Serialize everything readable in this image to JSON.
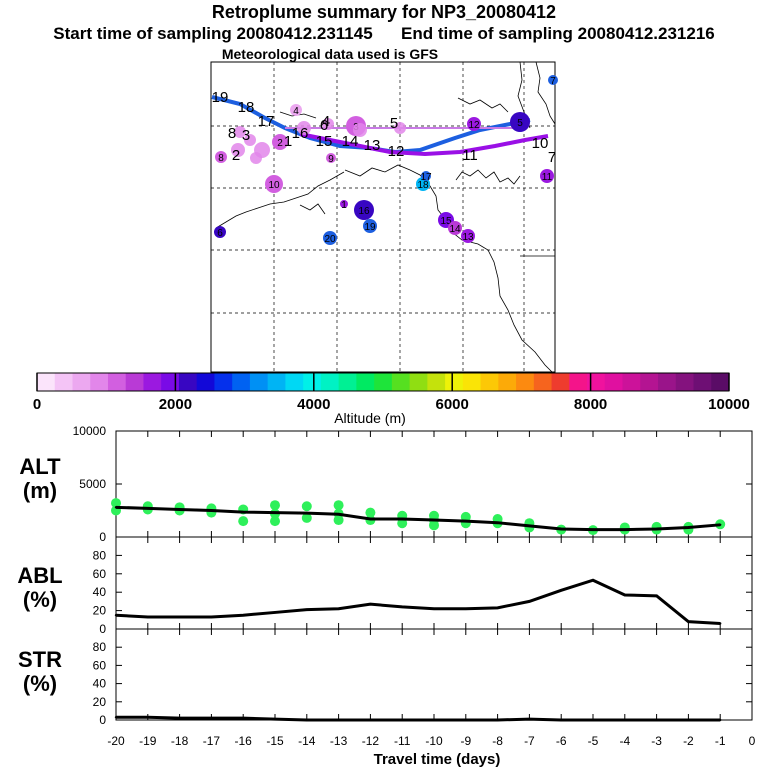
{
  "header": {
    "title": "Retroplume summary for NP3_20080412",
    "start": "Start time of sampling 20080412.231145",
    "end": "End time of sampling 20080412.231216",
    "met": "Meteorological data used is GFS"
  },
  "colorbar": {
    "ticks": [
      "0",
      "2000",
      "4000",
      "6000",
      "8000",
      "10000"
    ],
    "label": "Altitude (m)",
    "colors": [
      "#fbe4fb",
      "#f4c4f6",
      "#eca8f0",
      "#e286ea",
      "#d25fe0",
      "#b93ad6",
      "#9b19e0",
      "#7a0ae6",
      "#3806c2",
      "#1208d8",
      "#0530ec",
      "#0062f2",
      "#0090f4",
      "#00b4f4",
      "#00d8f4",
      "#00f0e8",
      "#00f2c4",
      "#00f094",
      "#00ea62",
      "#1ee43a",
      "#56e020",
      "#90de12",
      "#c4e20c",
      "#eef208",
      "#fae406",
      "#fcc806",
      "#fcaa08",
      "#fc8a10",
      "#f6641e",
      "#ee3c2e",
      "#f4148a",
      "#f0129e",
      "#e010a0",
      "#cc129a",
      "#b41492",
      "#9a148a",
      "#84127e",
      "#6e0f74",
      "#5a0c66"
    ]
  },
  "map": {
    "track_labels": [
      "19",
      "18",
      "17",
      "16",
      "15",
      "14",
      "13",
      "12",
      "11",
      "10",
      "8",
      "7",
      "6",
      "5",
      "4",
      "3",
      "2",
      "1"
    ],
    "dot_labels": [
      "20",
      "19",
      "18",
      "17",
      "16",
      "15",
      "14",
      "13",
      "12",
      "11",
      "10",
      "9",
      "8",
      "7",
      "6",
      "5",
      "4",
      "3",
      "2",
      "1"
    ],
    "colors": {
      "blue_track": "#1d5fe0",
      "purple_track": "#9a10e6"
    }
  },
  "panels": {
    "alt": {
      "label_top": "ALT",
      "label_bottom": "(m)",
      "yticks": [
        "10000",
        "5000",
        "0"
      ]
    },
    "abl": {
      "label_top": "ABL",
      "label_bottom": "(%)",
      "yticks": [
        "80",
        "60",
        "40",
        "20",
        "0"
      ]
    },
    "str": {
      "label_top": "STR",
      "label_bottom": "(%)",
      "yticks": [
        "80",
        "60",
        "40",
        "20",
        "0"
      ]
    }
  },
  "xaxis": {
    "label": "Travel time (days)",
    "ticks": [
      "-20",
      "-19",
      "-18",
      "-17",
      "-16",
      "-15",
      "-14",
      "-13",
      "-12",
      "-11",
      "-10",
      "-9",
      "-8",
      "-7",
      "-6",
      "-5",
      "-4",
      "-3",
      "-2",
      "-1",
      "0"
    ]
  },
  "chart_data": [
    {
      "type": "line",
      "title": "ALT (m)",
      "ylim": [
        0,
        10000
      ],
      "x": [
        -20,
        -19,
        -18,
        -17,
        -16,
        -15,
        -14,
        -13,
        -12,
        -11,
        -10,
        -9,
        -8,
        -7,
        -6,
        -5,
        -4,
        -3,
        -2,
        -1
      ],
      "series": [
        {
          "name": "mean altitude",
          "values": [
            2800,
            2700,
            2600,
            2500,
            2350,
            2300,
            2250,
            2150,
            1700,
            1700,
            1600,
            1500,
            1350,
            1050,
            750,
            700,
            700,
            750,
            900,
            1150
          ]
        }
      ],
      "scatter_x": [
        -20,
        -20,
        -19,
        -19,
        -18,
        -18,
        -17,
        -17,
        -16,
        -16,
        -15,
        -15,
        -15,
        -14,
        -14,
        -13,
        -13,
        -13,
        -12,
        -12,
        -11,
        -11,
        -10,
        -10,
        -10,
        -9,
        -9,
        -8,
        -8,
        -7,
        -7,
        -6,
        -5,
        -4,
        -4,
        -3,
        -3,
        -2,
        -2,
        -1
      ],
      "scatter_y": [
        3200,
        2500,
        2900,
        2600,
        2800,
        2500,
        2700,
        2300,
        2600,
        1500,
        3000,
        2200,
        1500,
        2900,
        1800,
        3000,
        2200,
        1600,
        2300,
        1600,
        2000,
        1300,
        2000,
        1600,
        1100,
        1900,
        1300,
        1700,
        1300,
        1300,
        900,
        700,
        650,
        900,
        700,
        950,
        700,
        950,
        700,
        1200
      ]
    },
    {
      "type": "line",
      "title": "ABL (%)",
      "ylim": [
        0,
        100
      ],
      "x": [
        -20,
        -19,
        -18,
        -17,
        -16,
        -15,
        -14,
        -13,
        -12,
        -11,
        -10,
        -9,
        -8,
        -7,
        -6,
        -5,
        -4,
        -3,
        -2,
        -1
      ],
      "series": [
        {
          "name": "ABL fraction",
          "values": [
            15,
            13,
            13,
            13,
            15,
            18,
            21,
            22,
            27,
            24,
            22,
            22,
            23,
            30,
            42,
            53,
            37,
            36,
            8,
            6
          ]
        }
      ]
    },
    {
      "type": "line",
      "title": "STR (%)",
      "ylim": [
        0,
        100
      ],
      "x": [
        -20,
        -19,
        -18,
        -17,
        -16,
        -15,
        -14,
        -13,
        -12,
        -11,
        -10,
        -9,
        -8,
        -7,
        -6,
        -5,
        -4,
        -3,
        -2,
        -1
      ],
      "series": [
        {
          "name": "STR fraction",
          "values": [
            3,
            3,
            2,
            2,
            2,
            1,
            0,
            0,
            0,
            0,
            0,
            0,
            0,
            1,
            0,
            0,
            0,
            0,
            0,
            0
          ]
        }
      ]
    }
  ]
}
